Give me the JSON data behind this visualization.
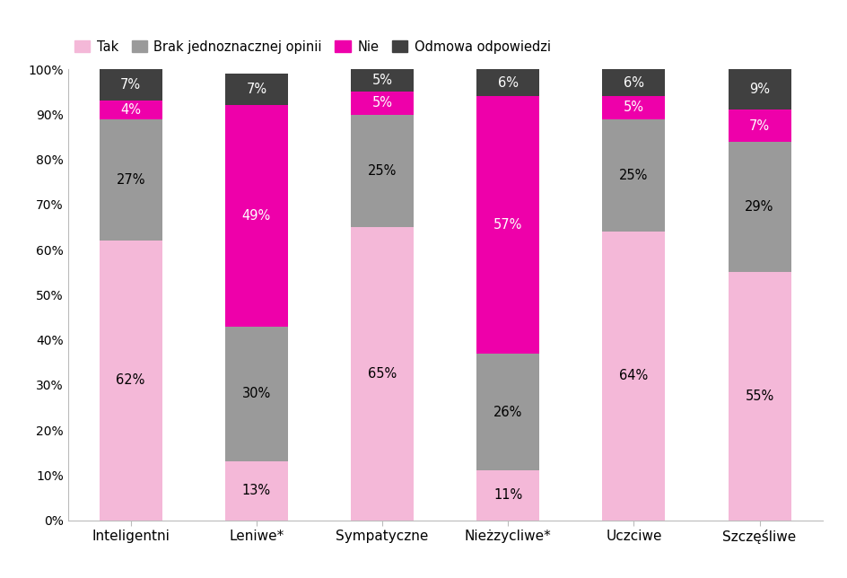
{
  "categories": [
    "Inteligentni",
    "Leniwe*",
    "Sympatyczne",
    "Nieżzycliwe*",
    "Uczciwe",
    "Szczęśliwe"
  ],
  "series": {
    "Tak": [
      62,
      13,
      65,
      11,
      64,
      55
    ],
    "Brak jednoznacznej opinii": [
      27,
      30,
      25,
      26,
      25,
      29
    ],
    "Nie": [
      4,
      49,
      5,
      57,
      5,
      7
    ],
    "Odmowa odpowiedzi": [
      7,
      7,
      5,
      6,
      6,
      9
    ]
  },
  "colors": {
    "Tak": "#f4b8d8",
    "Brak jednoznacznej opinii": "#9a9a9a",
    "Nie": "#ee00aa",
    "Odmowa odpowiedzi": "#404040"
  },
  "legend_labels": [
    "Tak",
    "Brak jednoznacznej opinii",
    "Nie",
    "Odmowa odpowiedzi"
  ],
  "text_colors": {
    "Tak": "black",
    "Brak jednoznacznej opinii": "black",
    "Nie": "white",
    "Odmowa odpowiedzi": "white"
  },
  "ylim": [
    0,
    100
  ],
  "yticks": [
    0,
    10,
    20,
    30,
    40,
    50,
    60,
    70,
    80,
    90,
    100
  ],
  "ytick_labels": [
    "0%",
    "10%",
    "20%",
    "30%",
    "40%",
    "50%",
    "60%",
    "70%",
    "80%",
    "90%",
    "100%"
  ],
  "bar_width": 0.5,
  "figsize": [
    9.45,
    6.44
  ],
  "dpi": 100,
  "background_color": "#ffffff",
  "label_fontsize": 10.5,
  "legend_fontsize": 10.5,
  "tick_fontsize": 10,
  "xlabel_fontsize": 11
}
